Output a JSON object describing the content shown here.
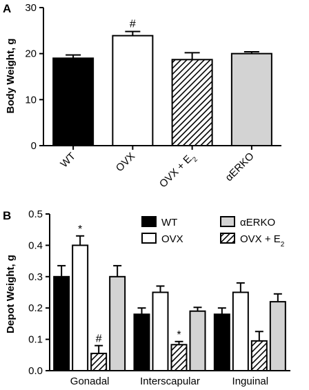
{
  "colors": {
    "WT": "#000000",
    "OVX": "#ffffff",
    "OVX_E2": "hatched",
    "aERKO": "#d3d3d3"
  },
  "chart_data": [
    {
      "panel": "A",
      "type": "bar",
      "ylabel": "Body Weight, g",
      "ylim": [
        0,
        30
      ],
      "yticks": [
        "0",
        "10",
        "20",
        "30"
      ],
      "categories": [
        {
          "main": "WT",
          "sub": ""
        },
        {
          "main": "OVX",
          "sub": ""
        },
        {
          "main": "OVX + E",
          "sub": "2"
        },
        {
          "main": "αERKO",
          "sub": ""
        }
      ],
      "values": [
        19.0,
        23.9,
        18.7,
        20.0
      ],
      "errors": [
        0.7,
        0.9,
        1.5,
        0.4
      ],
      "fills": [
        "WT",
        "OVX",
        "OVX_E2",
        "aERKO"
      ],
      "annotations": [
        "",
        "#",
        "",
        ""
      ],
      "grid": false
    },
    {
      "panel": "B",
      "type": "bar",
      "ylabel": "Depot Weight, g",
      "ylim": [
        0,
        0.5
      ],
      "yticks": [
        "0.0",
        "0.1",
        "0.2",
        "0.3",
        "0.4",
        "0.5"
      ],
      "categories": [
        "Gonadal",
        "Interscapular",
        "Inguinal"
      ],
      "series": [
        {
          "name": "WT",
          "fill": "WT",
          "values": [
            0.3,
            0.18,
            0.18
          ],
          "errors": [
            0.035,
            0.02,
            0.02
          ],
          "annotations": [
            "",
            "",
            ""
          ]
        },
        {
          "name": "OVX",
          "fill": "OVX",
          "values": [
            0.4,
            0.25,
            0.25
          ],
          "errors": [
            0.03,
            0.02,
            0.03
          ],
          "annotations": [
            "*",
            "",
            ""
          ]
        },
        {
          "name": "OVX + E",
          "sub": "2",
          "fill": "OVX_E2",
          "values": [
            0.055,
            0.083,
            0.095
          ],
          "errors": [
            0.025,
            0.01,
            0.03
          ],
          "annotations": [
            "#",
            "*",
            ""
          ]
        },
        {
          "name": "αERKO",
          "fill": "aERKO",
          "values": [
            0.3,
            0.19,
            0.22
          ],
          "errors": [
            0.035,
            0.012,
            0.025
          ],
          "annotations": [
            "",
            "",
            ""
          ]
        }
      ],
      "legend": {
        "placement": "top-right",
        "entries": [
          {
            "label": "WT",
            "sub": "",
            "fill": "WT"
          },
          {
            "label": "αERKO",
            "sub": "",
            "fill": "aERKO"
          },
          {
            "label": "OVX",
            "sub": "",
            "fill": "OVX"
          },
          {
            "label": "OVX + E",
            "sub": "2",
            "fill": "OVX_E2"
          }
        ]
      },
      "grid": false
    }
  ]
}
